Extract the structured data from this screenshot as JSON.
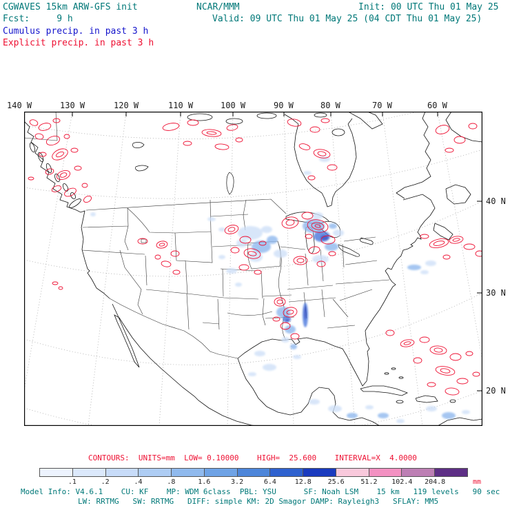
{
  "header": {
    "model_title": "CGWAVES 15km ARW-GFS init",
    "fcst_line": "Fcst:     9 h",
    "field_cumulus": "Cumulus precip. in past 3 h",
    "field_explicit": "Explicit precip. in past 3 h",
    "center_title": "NCAR/MMM",
    "valid_line": "Valid: 09 UTC Thu 01 May 25 (04 CDT Thu 01 May 25)",
    "init_line": "Init: 00 UTC Thu 01 May 25"
  },
  "map": {
    "lon_labels": [
      "140 W",
      "130 W",
      "120 W",
      "110 W",
      "100 W",
      "90 W",
      "80 W",
      "70 W",
      "60 W"
    ],
    "lat_labels": [
      "40 N",
      "30 N",
      "20 N"
    ]
  },
  "legend": {
    "contours_line": "CONTOURS:  UNITS=mm  LOW= 0.10000    HIGH=  25.600    INTERVAL=X  4.0000",
    "tick_labels": [
      ".1",
      ".2",
      ".4",
      ".8",
      "1.6",
      "3.2",
      "6.4",
      "12.8",
      "25.6",
      "51.2",
      "102.4",
      "204.8"
    ],
    "unit_label": "mm",
    "colors": [
      "#edf3fe",
      "#dce9fc",
      "#c8dcf9",
      "#aecdf4",
      "#90baee",
      "#6fa3e6",
      "#4d86da",
      "#2f62cf",
      "#1a3bbf",
      "#f9c9dc",
      "#f391c2",
      "#bd7fb4",
      "#5e2f86"
    ]
  },
  "model_info": {
    "line1": "Model Info: V4.6.1    CU: KF    MP: WDM 6class  PBL: YSU      SF: Noah LSM    15 km   119 levels   90 sec",
    "line2": "LW: RRTMG   SW: RRTMG   DIFF: simple KM: 2D Smagor DAMP: Rayleigh3   SFLAY: MM5"
  },
  "colors": {
    "header_teal": "#007878",
    "cumulus_blue": "#1515cc",
    "explicit_red": "#ee1133"
  }
}
